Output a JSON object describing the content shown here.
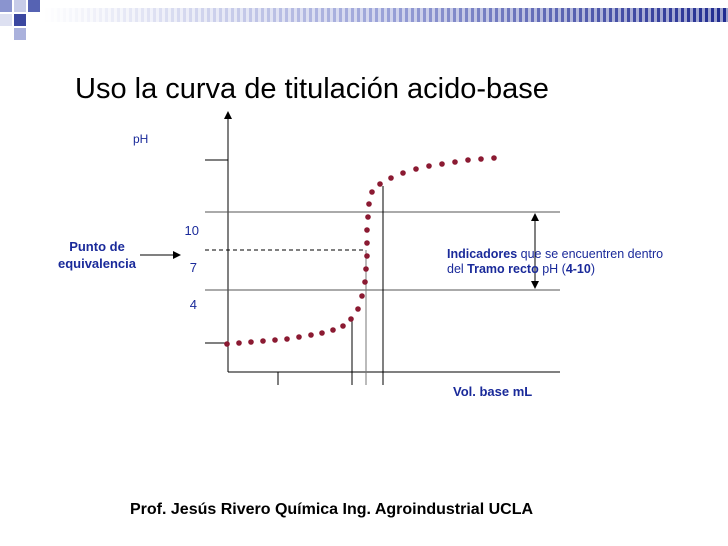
{
  "title": "Uso la curva de titulación acido-base",
  "diagram": {
    "y_axis_label": "pH",
    "x_axis_label": "Vol. base mL",
    "levels": [
      "10",
      "7",
      "4"
    ],
    "equivalence_label": [
      "Punto de",
      "equivalencia"
    ],
    "annotation": {
      "line1": [
        {
          "text": "Indicadores",
          "bold": true
        },
        {
          "text": " que se encuentren dentro",
          "bold": false
        }
      ],
      "line2": [
        {
          "text": "del ",
          "bold": false
        },
        {
          "text": "Tramo recto",
          "bold": true
        },
        {
          "text": " pH (",
          "bold": false
        },
        {
          "text": "4-10",
          "bold": true
        },
        {
          "text": ")",
          "bold": false
        }
      ]
    }
  },
  "footer": "Prof. Jesús Rivero Química Ing. Agroindustrial UCLA"
}
